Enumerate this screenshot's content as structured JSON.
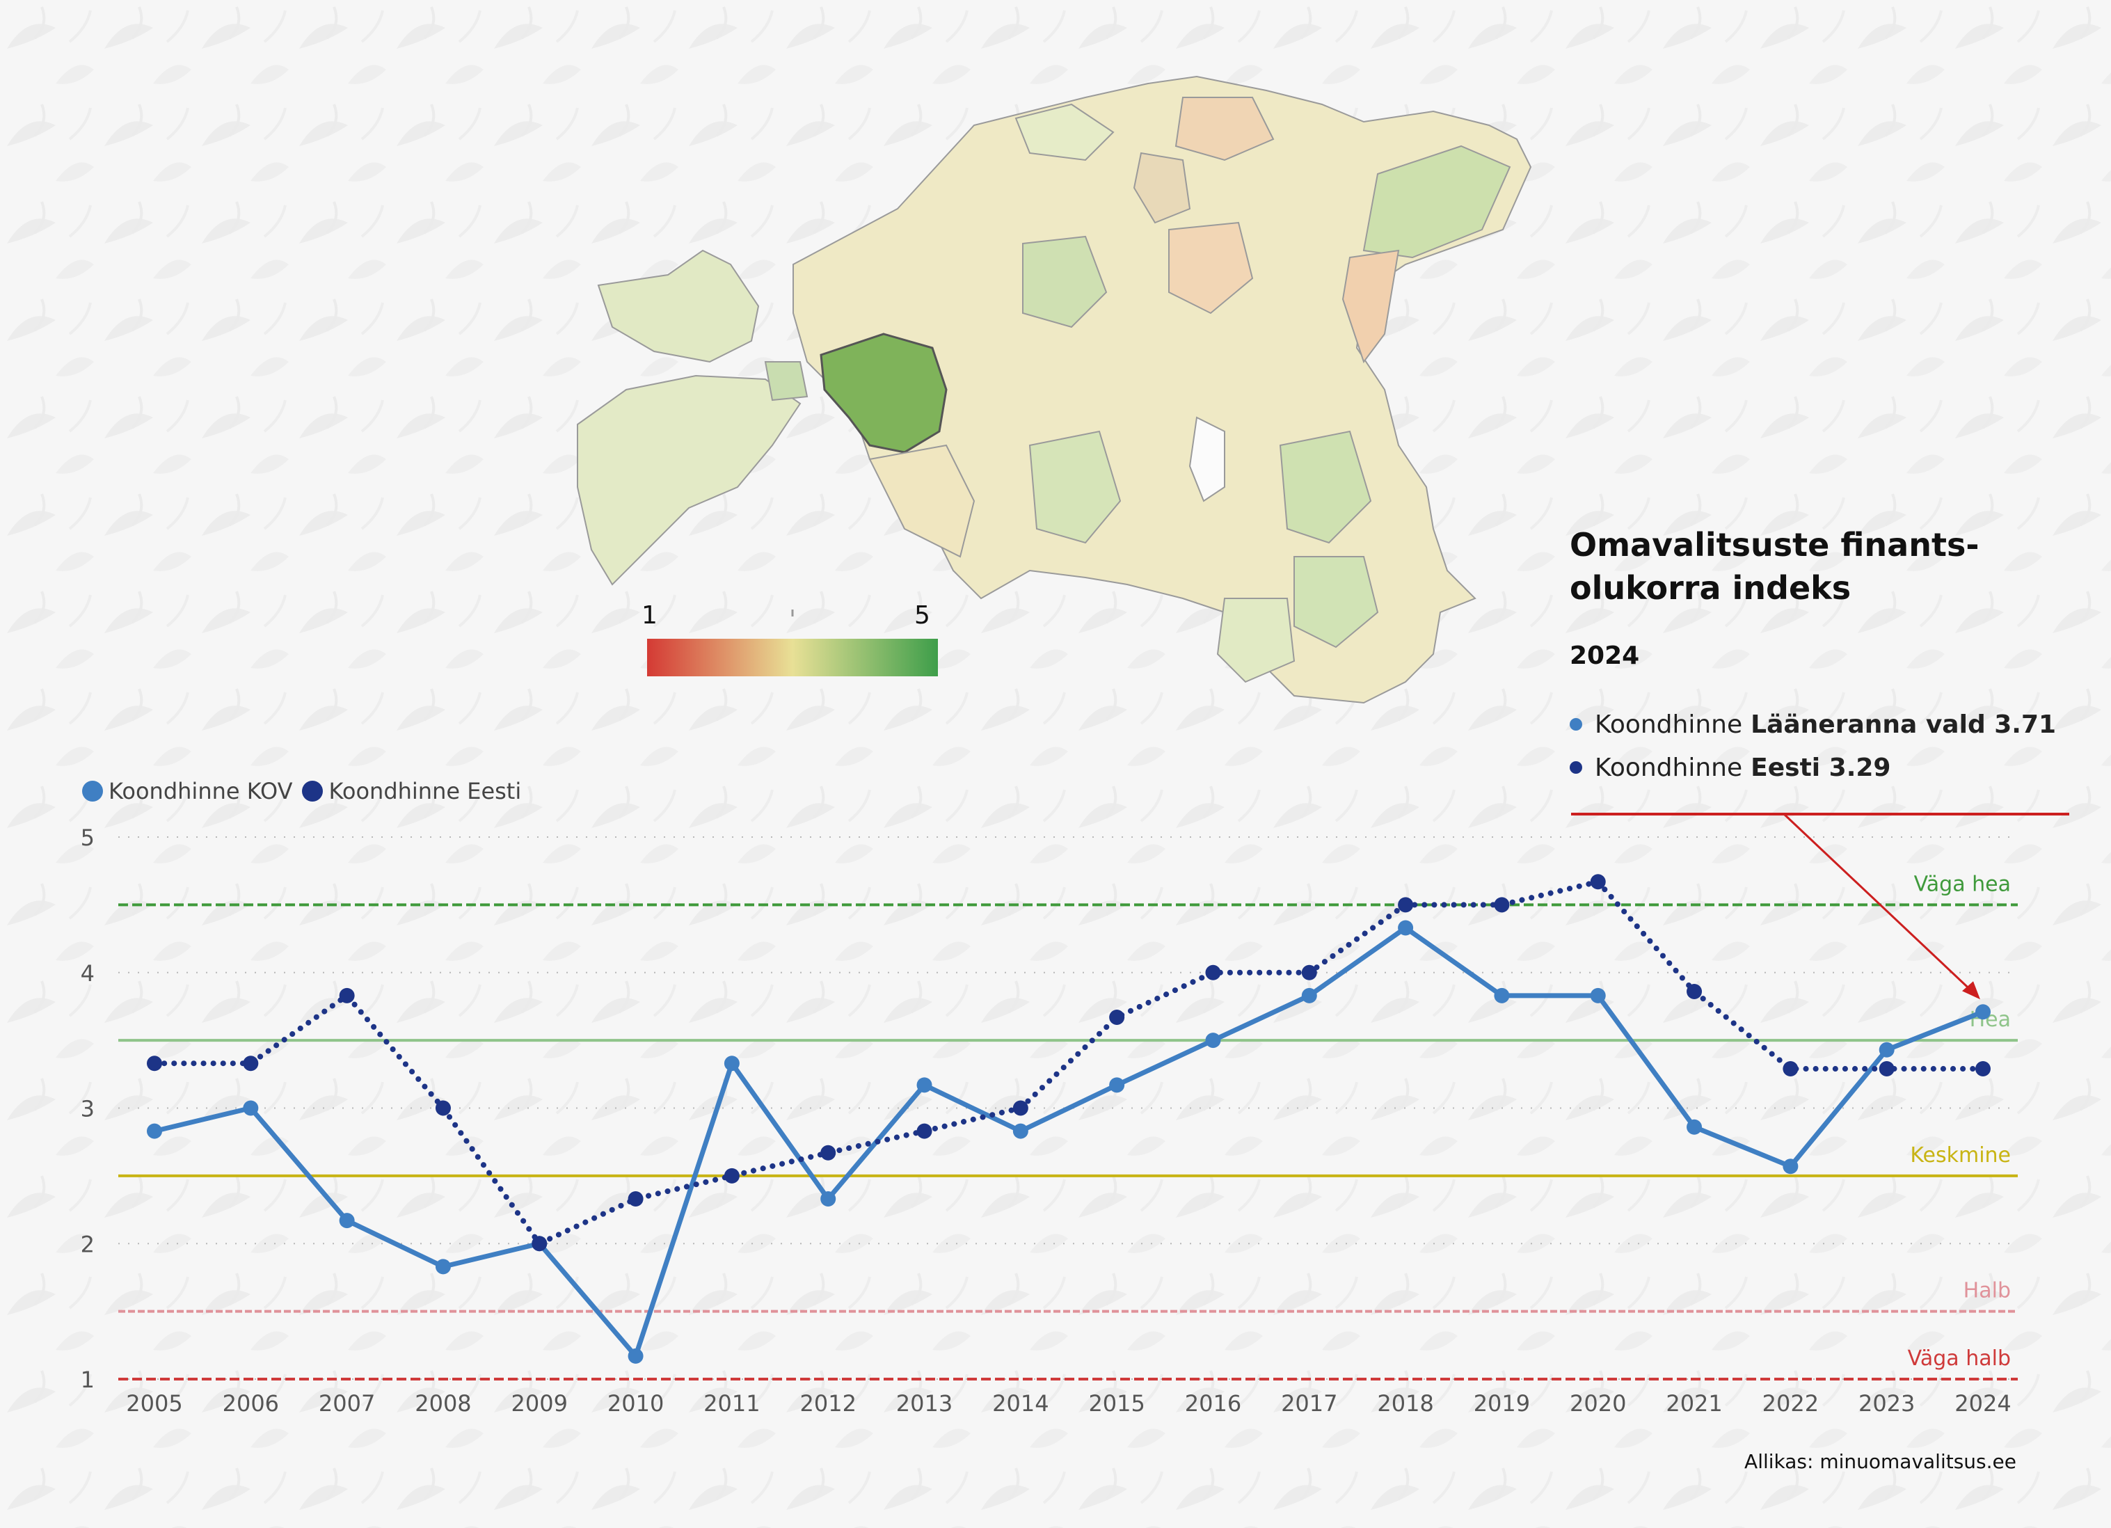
{
  "panel": {
    "title": "Omavalitsuste finants-olukorra indeks",
    "title_line1": "Omavalitsuste finants-",
    "title_line2": "olukorra indeks",
    "year": "2024",
    "legend_kov_prefix": "Koondhinne",
    "legend_kov_bold": "Lääneranna vald 3.71",
    "legend_eesti_prefix": "Koondhinne",
    "legend_eesti_bold": "Eesti 3.29"
  },
  "colorbar": {
    "min_label": "1",
    "max_label": "5",
    "colors": [
      "#d43a34",
      "#e8e096",
      "#3e9e4a"
    ]
  },
  "source": "Allikas: minuomavalitsus.ee",
  "chart_data": {
    "type": "line",
    "title": "",
    "xlabel": "",
    "ylabel": "",
    "ylim": [
      1,
      5
    ],
    "yticks": [
      "1",
      "2",
      "3",
      "4",
      "5"
    ],
    "categories": [
      "2005",
      "2006",
      "2007",
      "2008",
      "2009",
      "2010",
      "2011",
      "2012",
      "2013",
      "2014",
      "2015",
      "2016",
      "2017",
      "2018",
      "2019",
      "2020",
      "2021",
      "2022",
      "2023",
      "2024"
    ],
    "series": [
      {
        "name": "Koondhinne KOV",
        "color": "#3f7fc3",
        "style": "solid",
        "values": [
          2.83,
          3.0,
          2.17,
          1.83,
          2.0,
          1.17,
          3.33,
          2.33,
          3.17,
          2.83,
          3.17,
          3.5,
          3.83,
          4.33,
          3.83,
          3.83,
          2.86,
          2.57,
          3.43,
          3.71
        ]
      },
      {
        "name": "Koondhinne Eesti",
        "color": "#1d3487",
        "style": "dotted",
        "values": [
          3.33,
          3.33,
          3.83,
          3.0,
          2.0,
          2.33,
          2.5,
          2.67,
          2.83,
          3.0,
          3.67,
          4.0,
          4.0,
          4.5,
          4.5,
          4.67,
          3.86,
          3.29,
          3.29,
          3.29
        ]
      }
    ],
    "reference_lines": [
      {
        "label": "Väga hea",
        "value": 4.5,
        "color": "#3f9a3b"
      },
      {
        "label": "Hea",
        "value": 3.5,
        "color": "#8fc48a"
      },
      {
        "label": "Keskmine",
        "value": 2.5,
        "color": "#c8b414"
      },
      {
        "label": "Halb",
        "value": 1.5,
        "color": "#e0929a"
      },
      {
        "label": "Väga halb",
        "value": 1.0,
        "color": "#cf3a3a"
      }
    ],
    "grid": true,
    "legend_position": "top-left",
    "annotation": "Koondhinne Lääneranna vald 3.71"
  }
}
